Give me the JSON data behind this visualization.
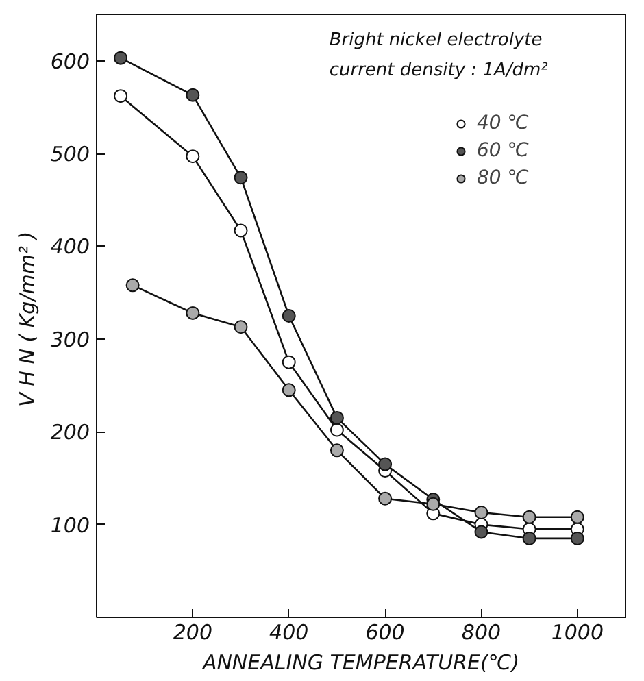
{
  "chart_data": {
    "type": "line",
    "xlabel": "ANNEALING TEMPERATURE(℃)",
    "ylabel": "V H N  ( Kg/mm² )",
    "annotations": [
      "Bright nickel electrolyte",
      "current density  : 1A/dm²"
    ],
    "xlim": [
      0,
      1100
    ],
    "ylim": [
      0,
      650
    ],
    "xticks": [
      200,
      400,
      600,
      800,
      1000
    ],
    "yticks": [
      100,
      200,
      300,
      400,
      500,
      600
    ],
    "marker": "circle",
    "legend": "top right",
    "grid": false,
    "series": [
      {
        "name": "40 ℃",
        "color": "#ffffff",
        "x": [
          50,
          200,
          300,
          400,
          500,
          600,
          700,
          800,
          900,
          1000
        ],
        "values": [
          562,
          497,
          417,
          275,
          202,
          158,
          112,
          100,
          95,
          95
        ]
      },
      {
        "name": "60 ℃",
        "color": "#555555",
        "x": [
          50,
          200,
          300,
          400,
          500,
          600,
          700,
          800,
          900,
          1000
        ],
        "values": [
          603,
          563,
          474,
          325,
          215,
          165,
          127,
          92,
          85,
          85
        ]
      },
      {
        "name": "80 ℃",
        "color": "#aaaaaa",
        "x": [
          75,
          200,
          300,
          400,
          500,
          600,
          700,
          800,
          900,
          1000
        ],
        "values": [
          358,
          328,
          313,
          245,
          180,
          128,
          122,
          113,
          108,
          108
        ]
      }
    ]
  }
}
